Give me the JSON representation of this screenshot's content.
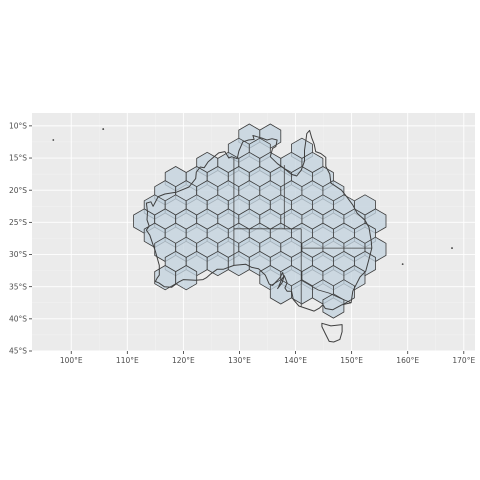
{
  "map": {
    "type": "hexagonal grid over Australia",
    "x_axis": {
      "label": "",
      "ticks": [
        {
          "value": 100,
          "label": "100°E"
        },
        {
          "value": 110,
          "label": "110°E"
        },
        {
          "value": 120,
          "label": "120°E"
        },
        {
          "value": 130,
          "label": "130°E"
        },
        {
          "value": 140,
          "label": "140°E"
        },
        {
          "value": 150,
          "label": "150°E"
        },
        {
          "value": 160,
          "label": "160°E"
        },
        {
          "value": 170,
          "label": "170°E"
        }
      ],
      "range": [
        93,
        172
      ]
    },
    "y_axis": {
      "label": "",
      "ticks": [
        {
          "value": -10,
          "label": "10°S"
        },
        {
          "value": -15,
          "label": "15°S"
        },
        {
          "value": -20,
          "label": "20°S"
        },
        {
          "value": -25,
          "label": "25°S"
        },
        {
          "value": -30,
          "label": "30°S"
        },
        {
          "value": -35,
          "label": "35°S"
        },
        {
          "value": -40,
          "label": "40°S"
        },
        {
          "value": -45,
          "label": "45°S"
        }
      ],
      "range": [
        -45,
        -8
      ]
    },
    "grid": true,
    "background_color": "#ebebeb",
    "hex_fill_color": "#c3d2de",
    "outline_color": "#3f3f3f",
    "hex_grid": {
      "cell_width_deg": 3.75,
      "rows": [
        {
          "lat": -11.6,
          "lons": [
            131.75,
            135.5
          ]
        },
        {
          "lat": -13.8,
          "lons": [
            129.875,
            133.625,
            141.125
          ]
        },
        {
          "lat": -16.0,
          "lons": [
            124.25,
            128.0,
            131.75,
            135.5,
            139.25,
            143.0
          ]
        },
        {
          "lat": -18.2,
          "lons": [
            118.625,
            122.375,
            126.125,
            129.875,
            133.625,
            137.375,
            141.125,
            144.875
          ]
        },
        {
          "lat": -20.4,
          "lons": [
            116.75,
            120.5,
            124.25,
            128.0,
            131.75,
            135.5,
            139.25,
            143.0,
            146.75
          ]
        },
        {
          "lat": -22.6,
          "lons": [
            114.875,
            118.625,
            122.375,
            126.125,
            129.875,
            133.625,
            137.375,
            141.125,
            144.875,
            148.625,
            152.375
          ]
        },
        {
          "lat": -24.8,
          "lons": [
            113.0,
            116.75,
            120.5,
            124.25,
            128.0,
            131.75,
            135.5,
            139.25,
            143.0,
            146.75,
            150.5,
            154.25
          ]
        },
        {
          "lat": -27.0,
          "lons": [
            114.875,
            118.625,
            122.375,
            126.125,
            129.875,
            133.625,
            137.375,
            141.125,
            144.875,
            148.625,
            152.375
          ]
        },
        {
          "lat": -29.2,
          "lons": [
            116.75,
            120.5,
            124.25,
            128.0,
            131.75,
            135.5,
            139.25,
            143.0,
            146.75,
            150.5,
            154.25
          ]
        },
        {
          "lat": -31.4,
          "lons": [
            118.625,
            122.375,
            126.125,
            129.875,
            133.625,
            137.375,
            141.125,
            144.875,
            148.625,
            152.375
          ]
        },
        {
          "lat": -33.6,
          "lons": [
            116.75,
            120.5,
            135.5,
            139.25,
            143.0,
            146.75,
            150.5
          ]
        },
        {
          "lat": -35.8,
          "lons": [
            137.375,
            141.125,
            144.875,
            148.625
          ]
        },
        {
          "lat": -38.0,
          "lons": [
            146.75
          ]
        }
      ]
    },
    "outlying_points": [
      {
        "lon": 96.8,
        "lat": -12.2
      },
      {
        "lon": 105.7,
        "lat": -10.5
      },
      {
        "lon": 159.1,
        "lat": -31.5
      },
      {
        "lon": 167.9,
        "lat": -29.0
      }
    ]
  }
}
